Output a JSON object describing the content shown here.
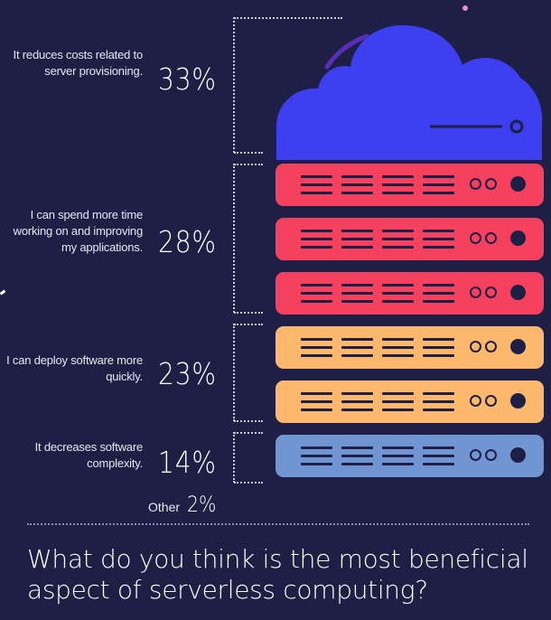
{
  "chart_data": {
    "type": "bar",
    "title": "What do you think is the most beneficial aspect of serverless computing?",
    "categories": [
      "It reduces costs related to server provisioning.",
      "I can spend more time working on and improving my applications.",
      "I can deploy software more quickly.",
      "It decreases software complexity.",
      "Other"
    ],
    "values": [
      33,
      28,
      23,
      14,
      2
    ],
    "value_labels": [
      "33%",
      "28%",
      "23%",
      "14%",
      "2%"
    ],
    "units": "%"
  },
  "labels": {
    "cost": "It reduces costs related to server provisioning.",
    "time": "I can spend more time working on and improving my applications.",
    "deploy": "I can deploy software more quickly.",
    "complexity": "It decreases software complexity.",
    "other": "Other"
  },
  "colors": {
    "background": "#1d1f45",
    "cloud": "#3e3ff0",
    "red": "#f5405e",
    "orange": "#fdb86e",
    "blue": "#7095d2",
    "accent_pink": "#f48ad4"
  },
  "icons": [
    "cloud-icon",
    "server-rack-icon"
  ]
}
